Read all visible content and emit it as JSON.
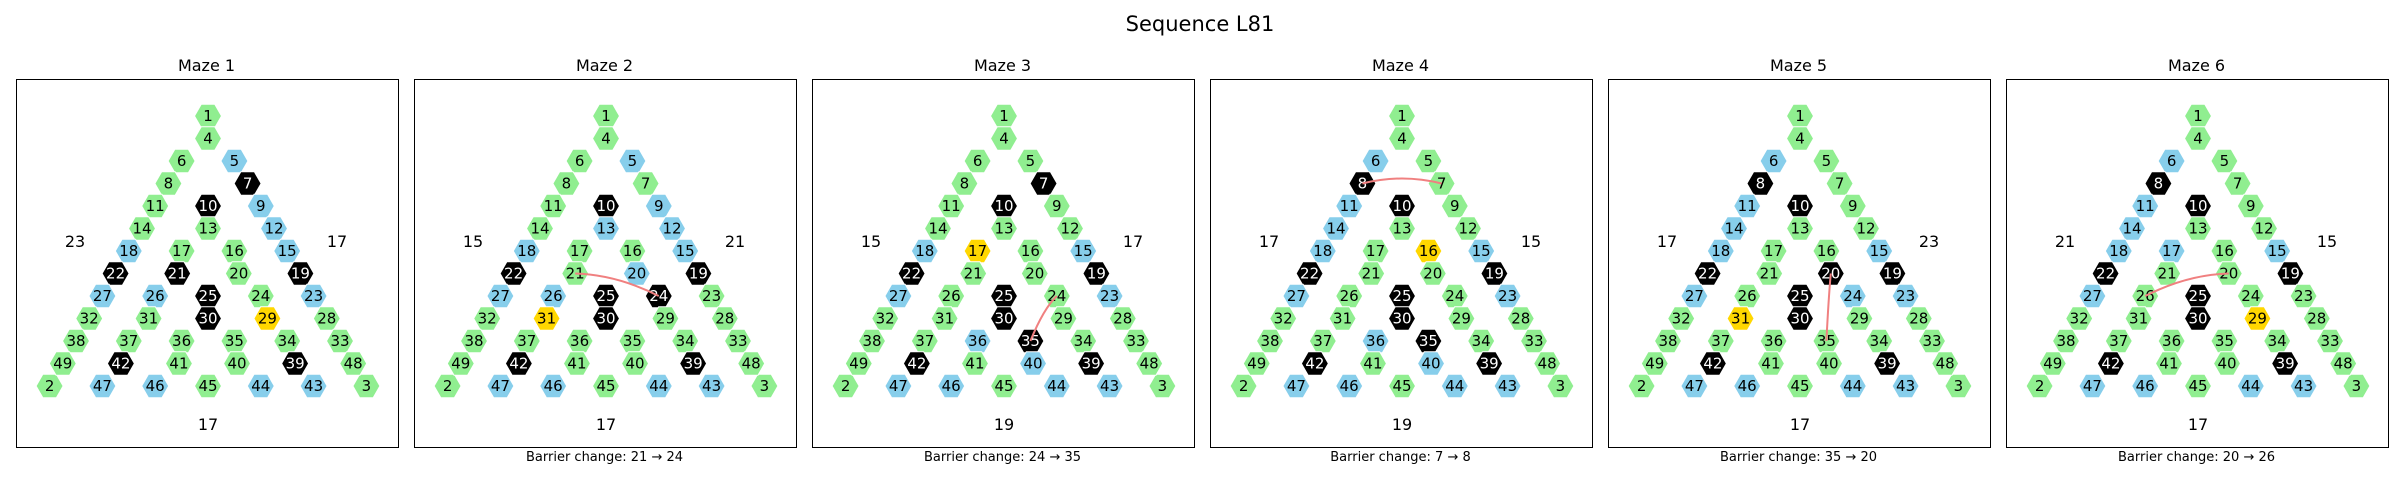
{
  "title": "Sequence L81",
  "colors": {
    "open": "#90ee90",
    "alt": "#87ceeb",
    "wall": "#000000",
    "goal": "#ffd700",
    "path": "#f08080"
  },
  "layout_rows": [
    [
      1
    ],
    [
      4
    ],
    [
      6,
      5
    ],
    [
      8,
      7
    ],
    [
      11,
      10,
      9
    ],
    [
      14,
      13,
      12
    ],
    [
      18,
      17,
      16,
      15
    ],
    [
      22,
      21,
      20,
      19
    ],
    [
      27,
      26,
      25,
      24,
      23
    ],
    [
      32,
      31,
      30,
      29,
      28
    ],
    [
      38,
      37,
      36,
      35,
      34,
      33
    ],
    [
      49,
      42,
      41,
      40,
      39,
      48
    ],
    [
      2,
      47,
      46,
      45,
      44,
      43,
      3
    ]
  ],
  "mazes": [
    {
      "title": "Maze 1",
      "left": "23",
      "right": "17",
      "bottom": "17",
      "caption": "",
      "blue": [
        5,
        9,
        12,
        15,
        18,
        23,
        27,
        26,
        47,
        46,
        44,
        43
      ],
      "black": [
        7,
        10,
        22,
        21,
        25,
        19,
        30,
        42,
        39
      ],
      "gold": [
        29
      ],
      "path": []
    },
    {
      "title": "Maze 2",
      "left": "15",
      "right": "21",
      "bottom": "17",
      "caption": "Barrier change: 21 → 24",
      "blue": [
        5,
        9,
        13,
        12,
        15,
        18,
        20,
        27,
        26,
        47,
        46,
        44,
        43
      ],
      "black": [
        10,
        22,
        25,
        24,
        19,
        30,
        42,
        39
      ],
      "gold": [
        31
      ],
      "path": [
        21,
        24
      ]
    },
    {
      "title": "Maze 3",
      "left": "15",
      "right": "17",
      "bottom": "19",
      "caption": "Barrier change: 24 → 35",
      "blue": [
        15,
        18,
        23,
        27,
        36,
        47,
        46,
        40,
        44,
        43
      ],
      "black": [
        10,
        7,
        22,
        25,
        19,
        30,
        35,
        42,
        39
      ],
      "gold": [
        17
      ],
      "path": [
        24,
        35
      ]
    },
    {
      "title": "Maze 4",
      "left": "17",
      "right": "15",
      "bottom": "19",
      "caption": "Barrier change: 7 → 8",
      "blue": [
        6,
        11,
        14,
        15,
        18,
        23,
        27,
        36,
        47,
        46,
        40,
        44,
        43
      ],
      "black": [
        8,
        10,
        22,
        25,
        19,
        30,
        35,
        42,
        39
      ],
      "gold": [
        16
      ],
      "path": [
        8,
        7
      ]
    },
    {
      "title": "Maze 5",
      "left": "17",
      "right": "23",
      "bottom": "17",
      "caption": "Barrier change: 35 → 20",
      "blue": [
        6,
        11,
        14,
        18,
        15,
        24,
        23,
        27,
        47,
        46,
        44,
        43
      ],
      "black": [
        8,
        10,
        22,
        25,
        20,
        19,
        30,
        42,
        39
      ],
      "gold": [
        31
      ],
      "path": [
        20,
        35
      ]
    },
    {
      "title": "Maze 6",
      "left": "21",
      "right": "15",
      "bottom": "17",
      "caption": "Barrier change: 20 → 26",
      "blue": [
        6,
        11,
        14,
        17,
        18,
        15,
        27,
        47,
        46,
        44,
        43
      ],
      "black": [
        8,
        10,
        22,
        25,
        19,
        30,
        42,
        39
      ],
      "gold": [
        29
      ],
      "path": [
        26,
        20
      ]
    }
  ]
}
